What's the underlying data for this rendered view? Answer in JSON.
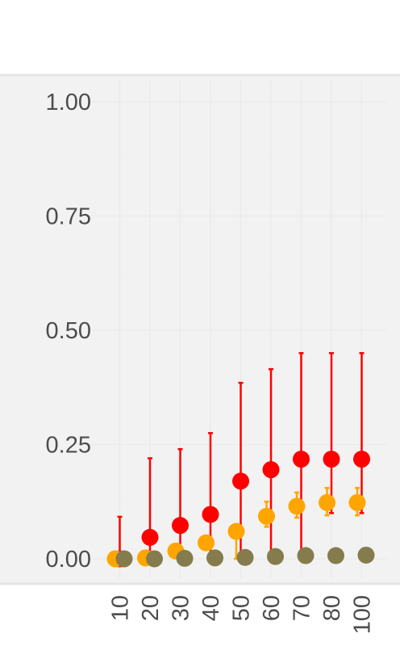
{
  "chart_data": {
    "type": "scatter",
    "title": "",
    "xlabel": "",
    "ylabel": "",
    "ylim": [
      0,
      1
    ],
    "yticks": [
      "0.00",
      "0.25",
      "0.50",
      "0.75",
      "1.00"
    ],
    "categories": [
      "10",
      "20",
      "30",
      "40",
      "50",
      "60",
      "70",
      "80",
      "100"
    ],
    "grid": true,
    "background": "#f2f2f2",
    "series": [
      {
        "color": "#ff0000",
        "offset": 0.5,
        "values": [
          0.0,
          0.047,
          0.073,
          0.097,
          0.17,
          0.195,
          0.218,
          0.218,
          0.218
        ],
        "lower": [
          0.0,
          0.0,
          0.0,
          0.0,
          0.0,
          0.0,
          0.0,
          0.1,
          0.1
        ],
        "upper": [
          0.092,
          0.22,
          0.24,
          0.275,
          0.385,
          0.415,
          0.45,
          0.45,
          0.45
        ]
      },
      {
        "color": "#ffa500",
        "offset": 0.0,
        "values": [
          0.0,
          0.002,
          0.017,
          0.035,
          0.06,
          0.093,
          0.115,
          0.123,
          0.123
        ],
        "lower": [
          0.0,
          0.0,
          0.0,
          0.0,
          0.0,
          0.07,
          0.09,
          0.095,
          0.095
        ],
        "upper": [
          0.0,
          0.0,
          0.0,
          0.0,
          0.075,
          0.125,
          0.145,
          0.155,
          0.155
        ]
      },
      {
        "color": "#847c4c",
        "offset": 1.0,
        "values": [
          0.0,
          0.0,
          0.001,
          0.002,
          0.003,
          0.005,
          0.007,
          0.007,
          0.008
        ],
        "lower": [
          0,
          0,
          0,
          0,
          0,
          0,
          0,
          0,
          0
        ],
        "upper": [
          0,
          0,
          0,
          0,
          0,
          0,
          0,
          0,
          0
        ]
      }
    ]
  }
}
